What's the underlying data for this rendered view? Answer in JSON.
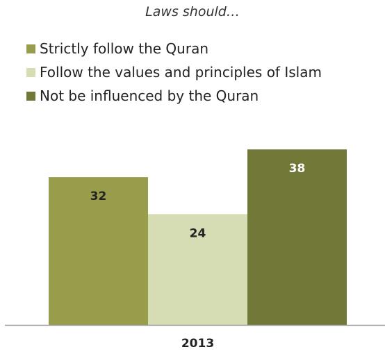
{
  "chart_data": {
    "type": "bar",
    "title": "Laws should…",
    "categories": [
      "2013"
    ],
    "series": [
      {
        "name": "Strictly follow the Quran",
        "values": [
          32
        ],
        "color": "#979d4b"
      },
      {
        "name": "Follow the values and principles of Islam",
        "values": [
          24
        ],
        "color": "#d6ddb4"
      },
      {
        "name": "Not be influenced by the Quran",
        "values": [
          38
        ],
        "color": "#727838"
      }
    ],
    "data_label_colors": [
      "#222222",
      "#222222",
      "#ffffff"
    ],
    "ylim": [
      0,
      46
    ],
    "xlabel": "",
    "ylabel": "",
    "grid": false,
    "legend": "top-left",
    "value_labels": true
  }
}
